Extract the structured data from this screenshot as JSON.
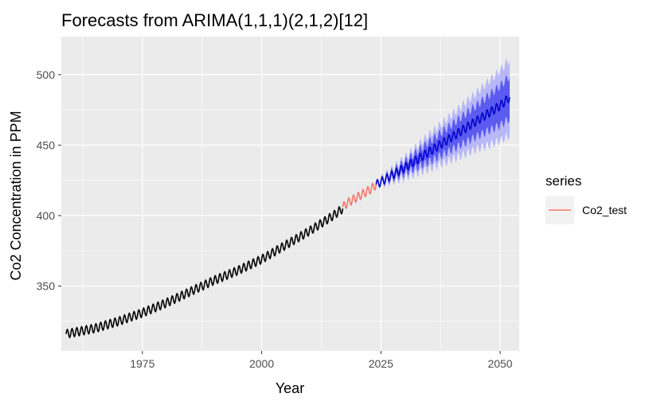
{
  "chart_data": {
    "type": "line",
    "title": "Forecasts from ARIMA(1,1,1)(2,1,2)[12]",
    "xlabel": "Year",
    "ylabel": "Co2 Concentration in PPM",
    "xlim": [
      1958,
      2054
    ],
    "ylim": [
      304,
      527
    ],
    "x_ticks": [
      1975,
      2000,
      2025,
      2050
    ],
    "y_ticks": [
      350,
      400,
      450,
      500
    ],
    "grid": true,
    "legend": {
      "title": "series",
      "placement": "right",
      "entries": [
        "Co2_test"
      ]
    },
    "colors": {
      "history": "#000000",
      "test": "#f8766d",
      "forecast": "#0000cc",
      "band80": "#5b5bf0",
      "band95": "#b8b8f8",
      "panel": "#ebebeb",
      "grid": "#ffffff"
    },
    "series": [
      {
        "role": "history",
        "seasonal_amplitude": 3,
        "x": [
          1959,
          1965,
          1970,
          1975,
          1980,
          1985,
          1990,
          1995,
          2000,
          2005,
          2010,
          2015,
          2017
        ],
        "values": [
          316,
          320,
          325,
          331,
          338,
          346,
          354,
          361,
          369,
          379,
          389,
          400,
          405
        ]
      },
      {
        "name": "Co2_test",
        "role": "test",
        "seasonal_amplitude": 3,
        "x": [
          2017,
          2018,
          2019,
          2020,
          2021,
          2022,
          2023,
          2024
        ],
        "values": [
          406,
          409,
          411,
          413,
          415,
          417,
          419,
          422
        ]
      },
      {
        "role": "forecast",
        "seasonal_amplitude": 3,
        "x": [
          2024,
          2025,
          2030,
          2035,
          2040,
          2045,
          2050,
          2052
        ],
        "values": [
          422,
          424,
          434,
          445,
          456,
          467,
          478,
          484
        ],
        "band80_halfwidth": [
          0,
          1,
          4,
          7,
          9,
          11,
          14,
          15
        ],
        "band95_halfwidth": [
          0,
          2,
          7,
          12,
          16,
          20,
          25,
          27
        ]
      }
    ]
  }
}
